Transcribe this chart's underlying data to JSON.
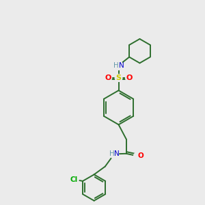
{
  "background_color": "#ebebeb",
  "bond_color": "#2d6e2d",
  "atom_colors": {
    "N": "#0000cc",
    "O": "#ff0000",
    "S": "#cccc00",
    "Cl": "#00aa00",
    "H": "#6699aa"
  },
  "figsize": [
    3.0,
    3.0
  ],
  "dpi": 100,
  "lw": 1.4
}
